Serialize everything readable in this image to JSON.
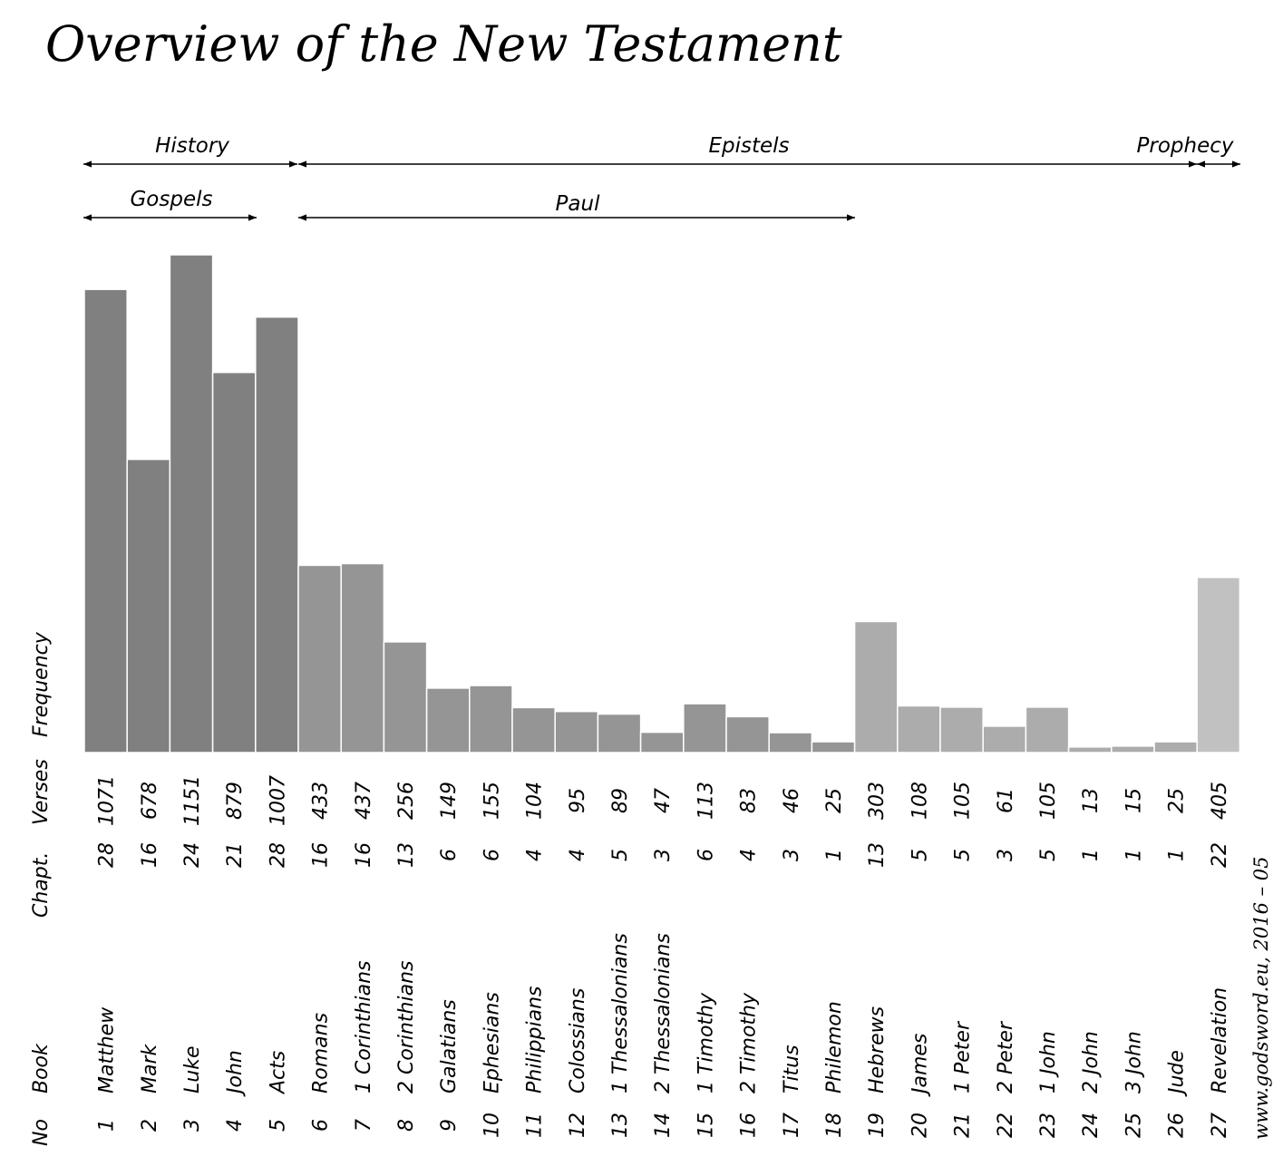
{
  "title": "Overview of the New Testament",
  "credit": "www.godsword.eu, 2016 – 05",
  "row_labels": {
    "frequency": "Frequency",
    "verses": "Verses",
    "chapters": "Chapt.",
    "book": "Book",
    "no": "No"
  },
  "groups": {
    "history": "History",
    "epistels": "Epistels",
    "prophecy": "Prophecy",
    "gospels": "Gospels",
    "paul": "Paul"
  },
  "colors": {
    "history": "#808080",
    "paul": "#959595",
    "general": "#acacac",
    "revelation": "#c1c1c1"
  },
  "chart_data": {
    "type": "bar",
    "title": "Overview of the New Testament",
    "ylabel": "Frequency",
    "ylim": [
      0,
      1151
    ],
    "categories": [
      "Matthew",
      "Mark",
      "Luke",
      "John",
      "Acts",
      "Romans",
      "1 Corinthians",
      "2 Corinthians",
      "Galatians",
      "Ephesians",
      "Philippians",
      "Colossians",
      "1 Thessalonians",
      "2 Thessalonians",
      "1 Timothy",
      "2 Timothy",
      "Titus",
      "Philemon",
      "Hebrews",
      "James",
      "1 Peter",
      "2 Peter",
      "1 John",
      "2 John",
      "3 John",
      "Jude",
      "Revelation"
    ],
    "numbers": [
      "1",
      "2",
      "3",
      "4",
      "5",
      "6",
      "7",
      "8",
      "9",
      "10",
      "11",
      "12",
      "13",
      "14",
      "15",
      "16",
      "17",
      "18",
      "19",
      "20",
      "21",
      "22",
      "23",
      "24",
      "25",
      "26",
      "27"
    ],
    "verses": [
      1071,
      678,
      1151,
      879,
      1007,
      433,
      437,
      256,
      149,
      155,
      104,
      95,
      89,
      47,
      113,
      83,
      46,
      25,
      303,
      108,
      105,
      61,
      105,
      13,
      15,
      25,
      405
    ],
    "chapters": [
      28,
      16,
      24,
      21,
      28,
      16,
      16,
      13,
      6,
      6,
      4,
      4,
      5,
      3,
      6,
      4,
      3,
      1,
      13,
      5,
      5,
      3,
      5,
      1,
      1,
      1,
      22
    ],
    "groups": [
      "history",
      "history",
      "history",
      "history",
      "history",
      "paul",
      "paul",
      "paul",
      "paul",
      "paul",
      "paul",
      "paul",
      "paul",
      "paul",
      "paul",
      "paul",
      "paul",
      "paul",
      "general",
      "general",
      "general",
      "general",
      "general",
      "general",
      "general",
      "general",
      "revelation"
    ]
  }
}
